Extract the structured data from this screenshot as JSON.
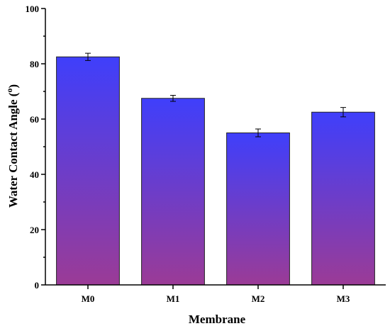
{
  "chart_data": {
    "type": "bar",
    "categories": [
      "M0",
      "M1",
      "M2",
      "M3"
    ],
    "values": [
      82.5,
      67.5,
      55,
      62.5
    ],
    "errors": [
      1.3,
      1.1,
      1.4,
      1.7
    ],
    "xlabel": "Membrane",
    "ylabel": "Water Contact Angle (",
    "ylabel_sup": "o",
    "ylabel_close": ")",
    "ylim": [
      0,
      100
    ],
    "yticks": [
      0,
      20,
      40,
      60,
      80,
      100
    ],
    "grid": false,
    "colors": {
      "bar_top": "#3f3ffb",
      "bar_bottom": "#9b3b96"
    }
  }
}
